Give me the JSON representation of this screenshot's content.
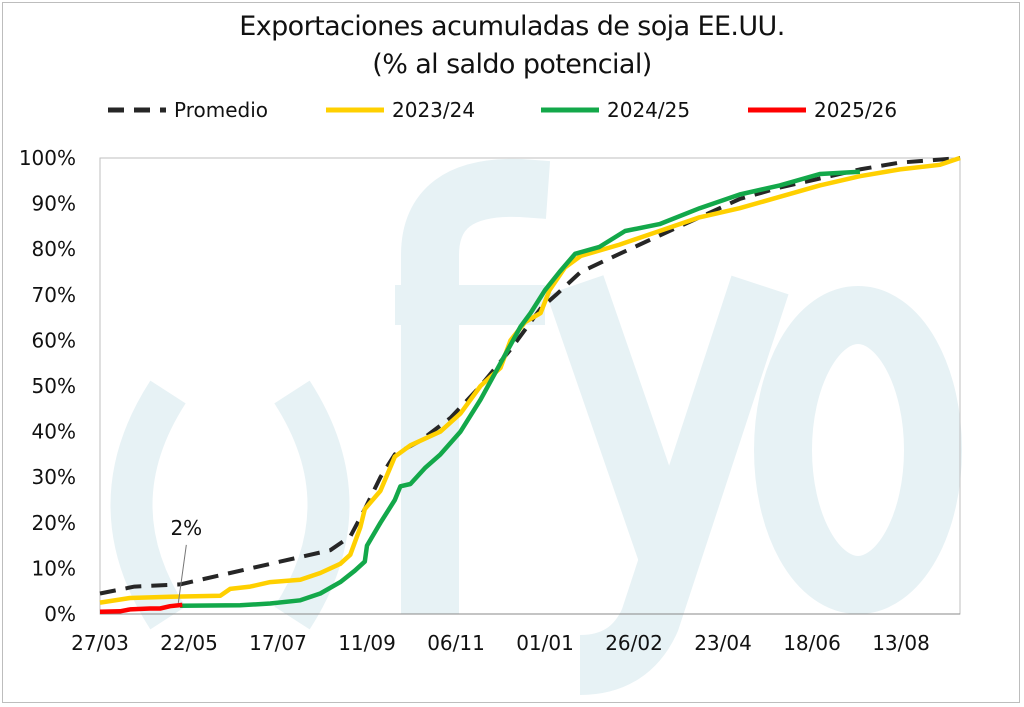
{
  "chart_data": {
    "type": "line",
    "title": "Exportaciones acumuladas de soja EE.UU.",
    "subtitle": "(% al saldo potencial)",
    "xlabel": "",
    "ylabel": "",
    "x_unit": "weeks since 27/03",
    "x_ticks": [
      {
        "week": 0,
        "label": "27/03"
      },
      {
        "week": 8,
        "label": "22/05"
      },
      {
        "week": 16,
        "label": "17/07"
      },
      {
        "week": 24,
        "label": "11/09"
      },
      {
        "week": 32,
        "label": "06/11"
      },
      {
        "week": 40,
        "label": "01/01"
      },
      {
        "week": 48,
        "label": "26/02"
      },
      {
        "week": 56,
        "label": "23/04"
      },
      {
        "week": 64,
        "label": "18/06"
      },
      {
        "week": 72,
        "label": "13/08"
      }
    ],
    "xlim": [
      0,
      77.3
    ],
    "ylim": [
      0,
      100
    ],
    "y_ticks": [
      "0%",
      "10%",
      "20%",
      "30%",
      "40%",
      "50%",
      "60%",
      "70%",
      "80%",
      "90%",
      "100%"
    ],
    "legend_position": "top",
    "series": [
      {
        "name": "Promedio",
        "color": "#262626",
        "dash": true,
        "points": [
          [
            0,
            4.5
          ],
          [
            3.1,
            6
          ],
          [
            7.2,
            6.5
          ],
          [
            11.7,
            9
          ],
          [
            16.2,
            11.5
          ],
          [
            20.7,
            14
          ],
          [
            22.5,
            17
          ],
          [
            23.8,
            23
          ],
          [
            25.2,
            30
          ],
          [
            26.5,
            35
          ],
          [
            28.8,
            38
          ],
          [
            31.5,
            43
          ],
          [
            34.2,
            50
          ],
          [
            36.9,
            58
          ],
          [
            39.6,
            67
          ],
          [
            41,
            70
          ],
          [
            43.2,
            75
          ],
          [
            46.7,
            79
          ],
          [
            50.3,
            83
          ],
          [
            53.9,
            87
          ],
          [
            57.5,
            91
          ],
          [
            61.1,
            93.5
          ],
          [
            64.7,
            95.5
          ],
          [
            68.3,
            97.5
          ],
          [
            71.9,
            99
          ],
          [
            77.3,
            100
          ]
        ]
      },
      {
        "name": "2023/24",
        "color": "#ffd000",
        "dash": false,
        "points": [
          [
            0,
            2.5
          ],
          [
            2.7,
            3.5
          ],
          [
            6.3,
            3.8
          ],
          [
            10.8,
            4
          ],
          [
            11.7,
            5.5
          ],
          [
            13.5,
            6
          ],
          [
            15.3,
            7
          ],
          [
            18,
            7.5
          ],
          [
            19.8,
            9
          ],
          [
            21.6,
            11
          ],
          [
            22.5,
            13
          ],
          [
            23.4,
            19
          ],
          [
            23.8,
            23
          ],
          [
            25.2,
            27
          ],
          [
            26.5,
            34.5
          ],
          [
            27.9,
            37
          ],
          [
            30.6,
            40
          ],
          [
            32.4,
            44
          ],
          [
            34.2,
            50
          ],
          [
            36,
            54
          ],
          [
            36.9,
            60
          ],
          [
            38.2,
            64
          ],
          [
            39.6,
            66
          ],
          [
            40.4,
            71
          ],
          [
            41.8,
            76
          ],
          [
            43.2,
            78.5
          ],
          [
            46.7,
            81
          ],
          [
            50.3,
            84
          ],
          [
            53.9,
            87
          ],
          [
            57.5,
            89
          ],
          [
            61.1,
            91.5
          ],
          [
            64.7,
            94
          ],
          [
            68.3,
            96
          ],
          [
            71.9,
            97.5
          ],
          [
            75.5,
            98.5
          ],
          [
            77.3,
            100
          ]
        ]
      },
      {
        "name": "2024/25",
        "color": "#13a84a",
        "dash": false,
        "points": [
          [
            7.2,
            1.8
          ],
          [
            12.6,
            1.9
          ],
          [
            15.3,
            2.3
          ],
          [
            18,
            3
          ],
          [
            19.8,
            4.5
          ],
          [
            21.6,
            7
          ],
          [
            22.9,
            9.5
          ],
          [
            23.8,
            11.5
          ],
          [
            24,
            15
          ],
          [
            25.2,
            20
          ],
          [
            26.5,
            25
          ],
          [
            27,
            28
          ],
          [
            27.9,
            28.5
          ],
          [
            29.2,
            32
          ],
          [
            30.6,
            35
          ],
          [
            32.4,
            40
          ],
          [
            34.2,
            47
          ],
          [
            36,
            55
          ],
          [
            37.8,
            63
          ],
          [
            38.7,
            66
          ],
          [
            40,
            71
          ],
          [
            41.3,
            75
          ],
          [
            42.7,
            79
          ],
          [
            44.9,
            80.5
          ],
          [
            47.2,
            84
          ],
          [
            50.3,
            85.5
          ],
          [
            53.9,
            89
          ],
          [
            57.5,
            92
          ],
          [
            61.1,
            94
          ],
          [
            64.7,
            96.5
          ],
          [
            68.3,
            97
          ]
        ]
      },
      {
        "name": "2025/26",
        "color": "#ff0000",
        "dash": false,
        "points": [
          [
            0,
            0.5
          ],
          [
            1.8,
            0.6
          ],
          [
            2.7,
            1
          ],
          [
            4.5,
            1.2
          ],
          [
            5.4,
            1.2
          ],
          [
            6.3,
            1.7
          ],
          [
            7.4,
            2
          ]
        ]
      }
    ],
    "annotations": [
      {
        "text": "2%",
        "series": "2025/26",
        "week": 7.4,
        "value": 2
      }
    ],
    "watermark": "()fyo"
  }
}
